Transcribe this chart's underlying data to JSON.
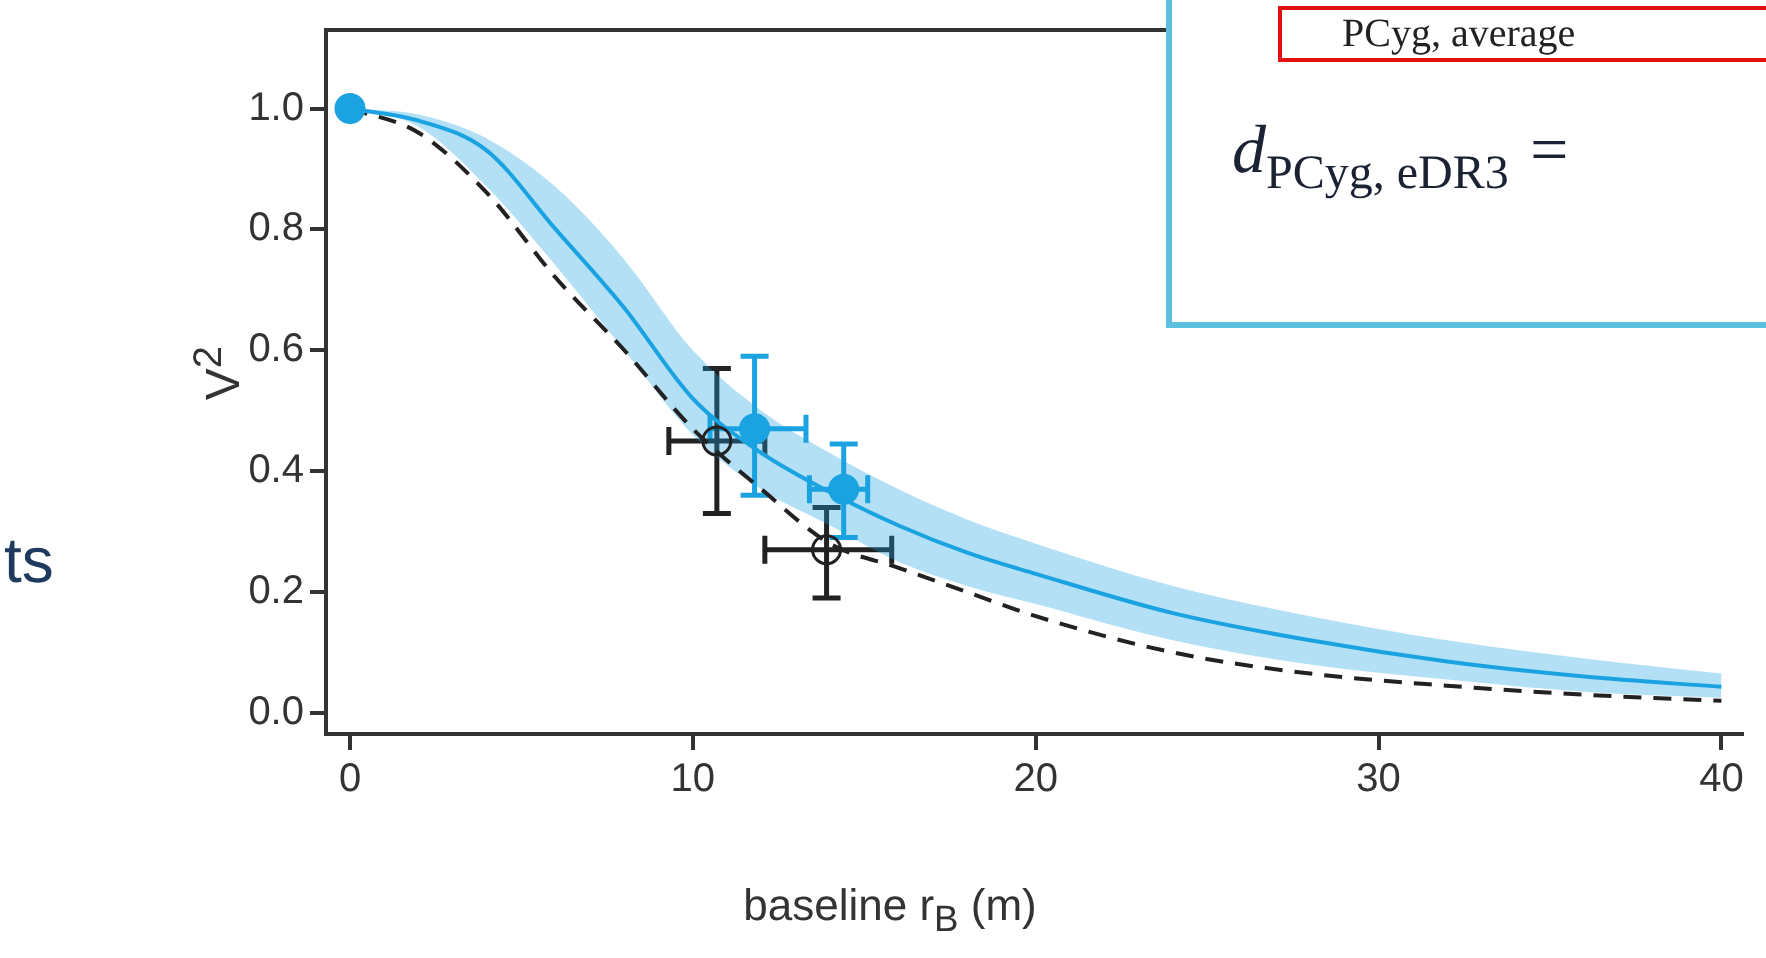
{
  "chart_data": {
    "type": "line",
    "xlabel": "baseline r$_{B}$ (m)",
    "ylabel": "V$^{2}$",
    "annotations": [
      "PCyg, average",
      "d$_{PCyg, eDR3}$ =",
      "ts"
    ],
    "xlim": [
      -0.7,
      40.6
    ],
    "ylim": [
      -0.035,
      1.13
    ],
    "xticks": [
      0,
      10,
      20,
      30,
      40
    ],
    "yticks": [
      {
        "value": 0,
        "label": "0.0"
      },
      {
        "value": 0.2,
        "label": "0.2"
      },
      {
        "value": 0.4,
        "label": "0.4"
      },
      {
        "value": 0.6,
        "label": "0.6"
      },
      {
        "value": 0.8,
        "label": "0.8"
      },
      {
        "value": 1,
        "label": "1.0"
      }
    ],
    "grid": false,
    "legend": false,
    "marker": "none",
    "series": [
      {
        "color": "#1aa3e0",
        "line_style": "solid",
        "x": [
          0,
          2,
          4,
          6,
          8,
          10,
          12,
          14,
          16,
          18,
          20,
          24,
          28,
          32,
          36,
          40
        ],
        "values": [
          1.0,
          0.98,
          0.93,
          0.8,
          0.67,
          0.52,
          0.43,
          0.365,
          0.31,
          0.265,
          0.23,
          0.165,
          0.12,
          0.085,
          0.06,
          0.043
        ],
        "lower": [
          1.0,
          0.97,
          0.87,
          0.74,
          0.6,
          0.46,
          0.37,
          0.31,
          0.25,
          0.21,
          0.18,
          0.12,
          0.08,
          0.055,
          0.035,
          0.025
        ],
        "upper": [
          1.0,
          0.99,
          0.95,
          0.87,
          0.75,
          0.6,
          0.5,
          0.43,
          0.37,
          0.32,
          0.28,
          0.21,
          0.16,
          0.12,
          0.09,
          0.065
        ]
      },
      {
        "color": "#222222",
        "line_style": "dashed",
        "x": [
          0,
          2,
          4,
          6,
          8,
          10,
          12,
          14,
          16,
          18,
          20,
          24,
          28,
          32,
          36,
          40
        ],
        "values": [
          1.0,
          0.96,
          0.86,
          0.72,
          0.6,
          0.47,
          0.37,
          0.28,
          0.24,
          0.2,
          0.16,
          0.1,
          0.065,
          0.045,
          0.03,
          0.02
        ]
      },
      {
        "type": "scatter",
        "color": "#1aa3e0",
        "marker": "circle",
        "x": [
          0,
          11.8,
          14.4
        ],
        "values": [
          1.0,
          0.47,
          0.37
        ],
        "errors": [
          null,
          [
            0.36,
            0.59
          ],
          [
            0.29,
            0.445
          ]
        ],
        "xerrors": [
          null,
          [
            10.5,
            13.3
          ],
          [
            13.4,
            15.1
          ]
        ]
      },
      {
        "type": "scatter",
        "color": "#222222",
        "marker": "circle",
        "x": [
          10.7,
          13.9
        ],
        "values": [
          0.45,
          0.27
        ],
        "errors": [
          [
            0.33,
            0.57
          ],
          [
            0.19,
            0.34
          ]
        ],
        "xerrors": [
          [
            9.3,
            12.1
          ],
          [
            12.1,
            15.8
          ]
        ]
      }
    ]
  }
}
